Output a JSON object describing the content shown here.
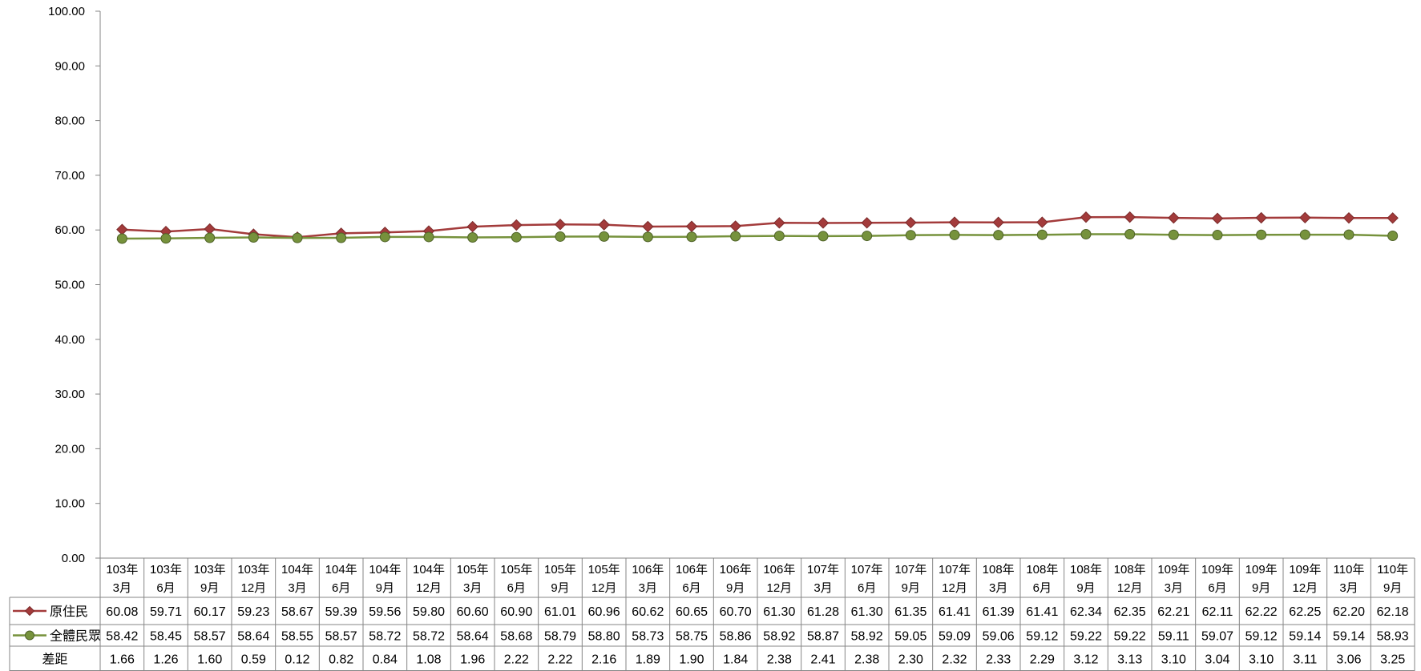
{
  "chart_data": {
    "type": "line",
    "title": "",
    "xlabel": "",
    "ylabel": "",
    "ylim": [
      0,
      100
    ],
    "yticks": [
      "0.00",
      "10.00",
      "20.00",
      "30.00",
      "40.00",
      "50.00",
      "60.00",
      "70.00",
      "80.00",
      "90.00",
      "100.00"
    ],
    "grid": false,
    "legend": "data-table-left",
    "categories": [
      [
        "103年",
        "3月"
      ],
      [
        "103年",
        "6月"
      ],
      [
        "103年",
        "9月"
      ],
      [
        "103年",
        "12月"
      ],
      [
        "104年",
        "3月"
      ],
      [
        "104年",
        "6月"
      ],
      [
        "104年",
        "9月"
      ],
      [
        "104年",
        "12月"
      ],
      [
        "105年",
        "3月"
      ],
      [
        "105年",
        "6月"
      ],
      [
        "105年",
        "9月"
      ],
      [
        "105年",
        "12月"
      ],
      [
        "106年",
        "3月"
      ],
      [
        "106年",
        "6月"
      ],
      [
        "106年",
        "9月"
      ],
      [
        "106年",
        "12月"
      ],
      [
        "107年",
        "3月"
      ],
      [
        "107年",
        "6月"
      ],
      [
        "107年",
        "9月"
      ],
      [
        "107年",
        "12月"
      ],
      [
        "108年",
        "3月"
      ],
      [
        "108年",
        "6月"
      ],
      [
        "108年",
        "9月"
      ],
      [
        "108年",
        "12月"
      ],
      [
        "109年",
        "3月"
      ],
      [
        "109年",
        "6月"
      ],
      [
        "109年",
        "9月"
      ],
      [
        "109年",
        "12月"
      ],
      [
        "110年",
        "3月"
      ],
      [
        "110年",
        "9月"
      ]
    ],
    "series": [
      {
        "name": "原住民",
        "color": "#a33b3b",
        "marker": "diamond",
        "values": [
          60.08,
          59.71,
          60.17,
          59.23,
          58.67,
          59.39,
          59.56,
          59.8,
          60.6,
          60.9,
          61.01,
          60.96,
          60.62,
          60.65,
          60.7,
          61.3,
          61.28,
          61.3,
          61.35,
          61.41,
          61.39,
          61.41,
          62.34,
          62.35,
          62.21,
          62.11,
          62.22,
          62.25,
          62.2,
          62.18
        ]
      },
      {
        "name": "全體民眾",
        "color": "#76923c",
        "marker": "circle",
        "values": [
          58.42,
          58.45,
          58.57,
          58.64,
          58.55,
          58.57,
          58.72,
          58.72,
          58.64,
          58.68,
          58.79,
          58.8,
          58.73,
          58.75,
          58.86,
          58.92,
          58.87,
          58.92,
          59.05,
          59.09,
          59.06,
          59.12,
          59.22,
          59.22,
          59.11,
          59.07,
          59.12,
          59.14,
          59.14,
          58.93
        ]
      }
    ],
    "table_rows": [
      {
        "name": "原住民",
        "cells": [
          "60.08",
          "59.71",
          "60.17",
          "59.23",
          "58.67",
          "59.39",
          "59.56",
          "59.80",
          "60.60",
          "60.90",
          "61.01",
          "60.96",
          "60.62",
          "60.65",
          "60.70",
          "61.30",
          "61.28",
          "61.30",
          "61.35",
          "61.41",
          "61.39",
          "61.41",
          "62.34",
          "62.35",
          "62.21",
          "62.11",
          "62.22",
          "62.25",
          "62.20",
          "62.18"
        ]
      },
      {
        "name": "全體民眾",
        "cells": [
          "58.42",
          "58.45",
          "58.57",
          "58.64",
          "58.55",
          "58.57",
          "58.72",
          "58.72",
          "58.64",
          "58.68",
          "58.79",
          "58.80",
          "58.73",
          "58.75",
          "58.86",
          "58.92",
          "58.87",
          "58.92",
          "59.05",
          "59.09",
          "59.06",
          "59.12",
          "59.22",
          "59.22",
          "59.11",
          "59.07",
          "59.12",
          "59.14",
          "59.14",
          "58.93"
        ]
      },
      {
        "name": "差距",
        "cells": [
          "1.66",
          "1.26",
          "1.60",
          "0.59",
          "0.12",
          "0.82",
          "0.84",
          "1.08",
          "1.96",
          "2.22",
          "2.22",
          "2.16",
          "1.89",
          "1.90",
          "1.84",
          "2.38",
          "2.41",
          "2.38",
          "2.30",
          "2.32",
          "2.33",
          "2.29",
          "3.12",
          "3.13",
          "3.10",
          "3.04",
          "3.10",
          "3.11",
          "3.06",
          "3.25"
        ]
      }
    ]
  }
}
